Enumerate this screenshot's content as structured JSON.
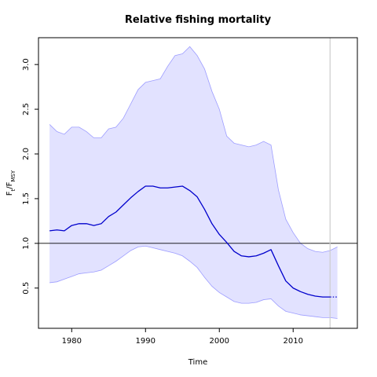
{
  "chart_data": {
    "type": "line",
    "title": "Relative fishing mortality",
    "xlabel": "Time",
    "ylabel": {
      "base": "F",
      "sub_numerator": "t",
      "sub_denominator": "MSY"
    },
    "xlim": [
      1975.5,
      2018.7
    ],
    "ylim": [
      0.05,
      3.3
    ],
    "x_ticks": [
      1980,
      1990,
      2000,
      2010
    ],
    "y_ticks": [
      0.5,
      1.0,
      1.5,
      2.0,
      2.5,
      3.0
    ],
    "y_tick_labels": [
      "0.5",
      "1.0",
      "1.5",
      "2.0",
      "2.5",
      "3.0"
    ],
    "reference_line": 1.0,
    "vertical_marker": 2015,
    "colors": {
      "median": "#0000cc",
      "band_fill": "#e2e2ff",
      "band_edge": "#9d9dff",
      "reference": "#000000",
      "marker": "#cccccc"
    },
    "median": {
      "x": [
        1977,
        1978,
        1979,
        1980,
        1981,
        1982,
        1983,
        1984,
        1985,
        1986,
        1987,
        1988,
        1989,
        1990,
        1991,
        1992,
        1993,
        1994,
        1995,
        1996,
        1997,
        1998,
        1999,
        2000,
        2001,
        2002,
        2003,
        2004,
        2005,
        2006,
        2007,
        2008,
        2009,
        2010,
        2011,
        2012,
        2013,
        2014,
        2015
      ],
      "y": [
        1.14,
        1.15,
        1.14,
        1.2,
        1.22,
        1.22,
        1.2,
        1.22,
        1.3,
        1.35,
        1.43,
        1.51,
        1.58,
        1.64,
        1.64,
        1.62,
        1.62,
        1.63,
        1.64,
        1.59,
        1.52,
        1.38,
        1.22,
        1.1,
        1.01,
        0.91,
        0.86,
        0.85,
        0.86,
        0.89,
        0.93,
        0.75,
        0.58,
        0.5,
        0.46,
        0.43,
        0.41,
        0.4,
        0.4
      ]
    },
    "projection": {
      "x": [
        2015,
        2016
      ],
      "y": [
        0.4,
        0.4
      ]
    },
    "band_upper": {
      "x": [
        1977,
        1978,
        1979,
        1980,
        1981,
        1982,
        1983,
        1984,
        1985,
        1986,
        1987,
        1988,
        1989,
        1990,
        1991,
        1992,
        1993,
        1994,
        1995,
        1996,
        1997,
        1998,
        1999,
        2000,
        2001,
        2002,
        2003,
        2004,
        2005,
        2006,
        2007,
        2008,
        2009,
        2010,
        2011,
        2012,
        2013,
        2014,
        2015,
        2016
      ],
      "y": [
        2.33,
        2.25,
        2.22,
        2.3,
        2.3,
        2.25,
        2.18,
        2.18,
        2.28,
        2.3,
        2.4,
        2.56,
        2.72,
        2.8,
        2.82,
        2.84,
        2.98,
        3.1,
        3.12,
        3.2,
        3.1,
        2.95,
        2.7,
        2.5,
        2.2,
        2.12,
        2.1,
        2.08,
        2.1,
        2.14,
        2.1,
        1.6,
        1.27,
        1.12,
        1.0,
        0.94,
        0.91,
        0.9,
        0.92,
        0.96
      ]
    },
    "band_lower": {
      "x": [
        1977,
        1978,
        1979,
        1980,
        1981,
        1982,
        1983,
        1984,
        1985,
        1986,
        1987,
        1988,
        1989,
        1990,
        1991,
        1992,
        1993,
        1994,
        1995,
        1996,
        1997,
        1998,
        1999,
        2000,
        2001,
        2002,
        2003,
        2004,
        2005,
        2006,
        2007,
        2008,
        2009,
        2010,
        2011,
        2012,
        2013,
        2014,
        2015,
        2016
      ],
      "y": [
        0.56,
        0.57,
        0.6,
        0.63,
        0.66,
        0.67,
        0.68,
        0.7,
        0.75,
        0.8,
        0.86,
        0.92,
        0.96,
        0.97,
        0.95,
        0.93,
        0.91,
        0.89,
        0.86,
        0.8,
        0.73,
        0.62,
        0.52,
        0.45,
        0.4,
        0.35,
        0.33,
        0.33,
        0.34,
        0.37,
        0.38,
        0.3,
        0.24,
        0.22,
        0.2,
        0.19,
        0.18,
        0.17,
        0.17,
        0.16
      ]
    }
  }
}
